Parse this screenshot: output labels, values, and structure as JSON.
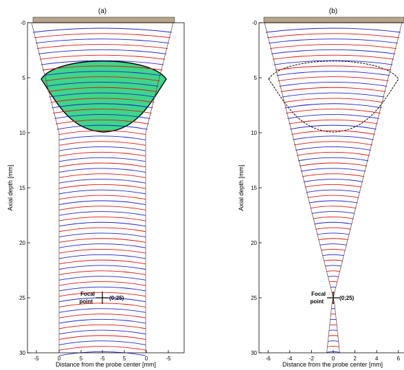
{
  "chart_data": [
    {
      "type": "line",
      "panel": "(a)",
      "title": "(a)",
      "xlabel": "Distance from the probe center [mm]",
      "ylabel": "Axial depth [mm]",
      "xtick_labels": [
        "-5",
        "0",
        "5",
        "-5",
        "5",
        "0",
        "-5"
      ],
      "ytick_labels": [
        "-0",
        "5",
        "10",
        "15",
        "20",
        "25",
        "30"
      ],
      "ylim": [
        0,
        30
      ],
      "y_reversed": true,
      "wavefront_count": 60,
      "wavefront_colors": [
        "#1f1fcf",
        "#e01010"
      ],
      "beam_outline": "converging to half-width ~4 mm at 10 mm depth, then constant",
      "lens_region": {
        "top_depth": 3.1,
        "side_depth": 5.2,
        "bottom_depth": 9.8,
        "fill": "#3dd68a"
      },
      "transducer_color": "#b5a58a",
      "focal_point": {
        "x": 0,
        "y": 25
      },
      "annotations": [
        {
          "lines": [
            "Focal",
            "point"
          ],
          "coord": "(0;25)"
        }
      ]
    },
    {
      "type": "line",
      "panel": "(b)",
      "title": "(b)",
      "xlabel": "Distance from the probe center [mm]",
      "ylabel": "Axial depth [mm]",
      "xtick_labels": [
        "-6",
        "-4",
        "-2",
        "0",
        "2",
        "4",
        "6"
      ],
      "ytick_labels": [
        "-0",
        "5",
        "10",
        "15",
        "20",
        "25",
        "30"
      ],
      "xlim": [
        -7,
        6
      ],
      "ylim": [
        0,
        30
      ],
      "y_reversed": true,
      "wavefront_count": 60,
      "wavefront_colors": [
        "#1f1fcf",
        "#e01010"
      ],
      "beam_outline": "converging cone with apex at focal point (0;25), diverging below",
      "lens_region": {
        "top_depth": 3.1,
        "side_depth": 5.2,
        "bottom_depth": 9.8,
        "fill": "none",
        "dashed": true
      },
      "transducer_color": "#b5a58a",
      "focal_point": {
        "x": 0,
        "y": 25
      },
      "annotations": [
        {
          "lines": [
            "Focal",
            "point"
          ],
          "coord": "(0;25)"
        }
      ]
    }
  ]
}
